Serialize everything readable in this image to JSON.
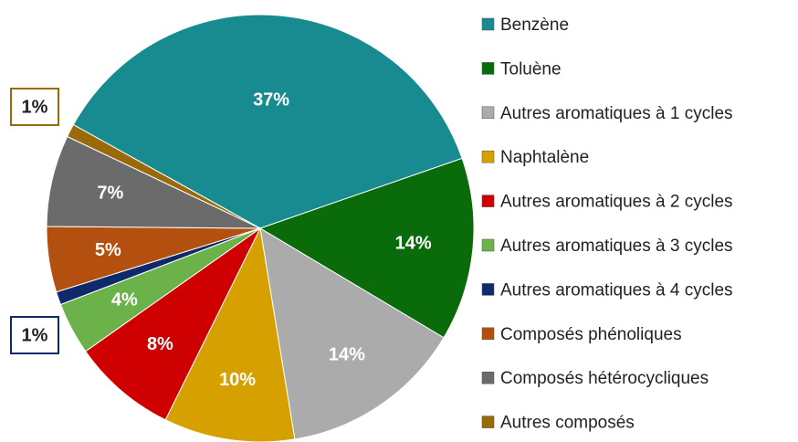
{
  "chart_data": {
    "type": "pie",
    "categories": [
      "Benzène",
      "Toluène",
      "Autres aromatiques à 1 cycles",
      "Naphtalène",
      "Autres aromatiques à 2 cycles",
      "Autres aromatiques à 3 cycles",
      "Autres aromatiques à 4 cycles",
      "Composés phénoliques",
      "Composés hétérocycliques",
      "Autres composés"
    ],
    "values": [
      37,
      14,
      14,
      10,
      8,
      4,
      1,
      5,
      7,
      1
    ],
    "value_labels": [
      "37%",
      "14%",
      "14%",
      "10%",
      "8%",
      "4%",
      "1%",
      "5%",
      "7%",
      "1%"
    ],
    "colors": [
      "#178b8f",
      "#0a6b0a",
      "#ababab",
      "#d6a100",
      "#cf0000",
      "#6cb24a",
      "#0e2a6b",
      "#b4500f",
      "#6b6b6b",
      "#9a6a0a"
    ],
    "legend": "right"
  }
}
